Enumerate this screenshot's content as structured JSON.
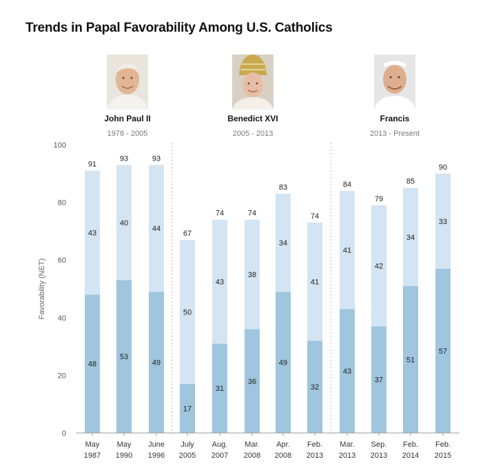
{
  "title": "Trends in Papal Favorability Among U.S. Catholics",
  "popes": [
    {
      "name": "John Paul II",
      "years": "1978 - 2005",
      "icon": "john-paul-ii-portrait"
    },
    {
      "name": "Benedict XVI",
      "years": "2005 - 2013",
      "icon": "benedict-xvi-portrait"
    },
    {
      "name": "Francis",
      "years": "2013 - Present",
      "icon": "francis-portrait"
    }
  ],
  "colors": {
    "very_favorable": "#9fc5df",
    "mostly_favorable": "#d3e4f2",
    "divider": "#bbbbbb",
    "axis": "#999999"
  },
  "chart_data": {
    "type": "bar",
    "stacked": true,
    "ylabel": "Favorability (NET)",
    "xlabel": "",
    "ylim": [
      0,
      100
    ],
    "yticks": [
      0,
      20,
      40,
      60,
      80,
      100
    ],
    "grid": false,
    "categories": [
      [
        "May",
        "1987"
      ],
      [
        "May",
        "1990"
      ],
      [
        "June",
        "1996"
      ],
      [
        "July",
        "2005"
      ],
      [
        "Aug.",
        "2007"
      ],
      [
        "Mar.",
        "2008"
      ],
      [
        "Apr.",
        "2008"
      ],
      [
        "Feb.",
        "2013"
      ],
      [
        "Mar.",
        "2013"
      ],
      [
        "Sep.",
        "2013"
      ],
      [
        "Feb.",
        "2014"
      ],
      [
        "Feb.",
        "2015"
      ]
    ],
    "series": [
      {
        "values": [
          48,
          53,
          49,
          17,
          31,
          36,
          49,
          32,
          43,
          37,
          51,
          57
        ]
      },
      {
        "values": [
          43,
          40,
          44,
          50,
          43,
          38,
          34,
          41,
          41,
          42,
          34,
          33
        ]
      }
    ],
    "totals": [
      91,
      93,
      93,
      67,
      74,
      74,
      83,
      74,
      84,
      79,
      85,
      90
    ],
    "era_groups": [
      [
        0,
        2
      ],
      [
        3,
        7
      ],
      [
        8,
        11
      ]
    ]
  }
}
